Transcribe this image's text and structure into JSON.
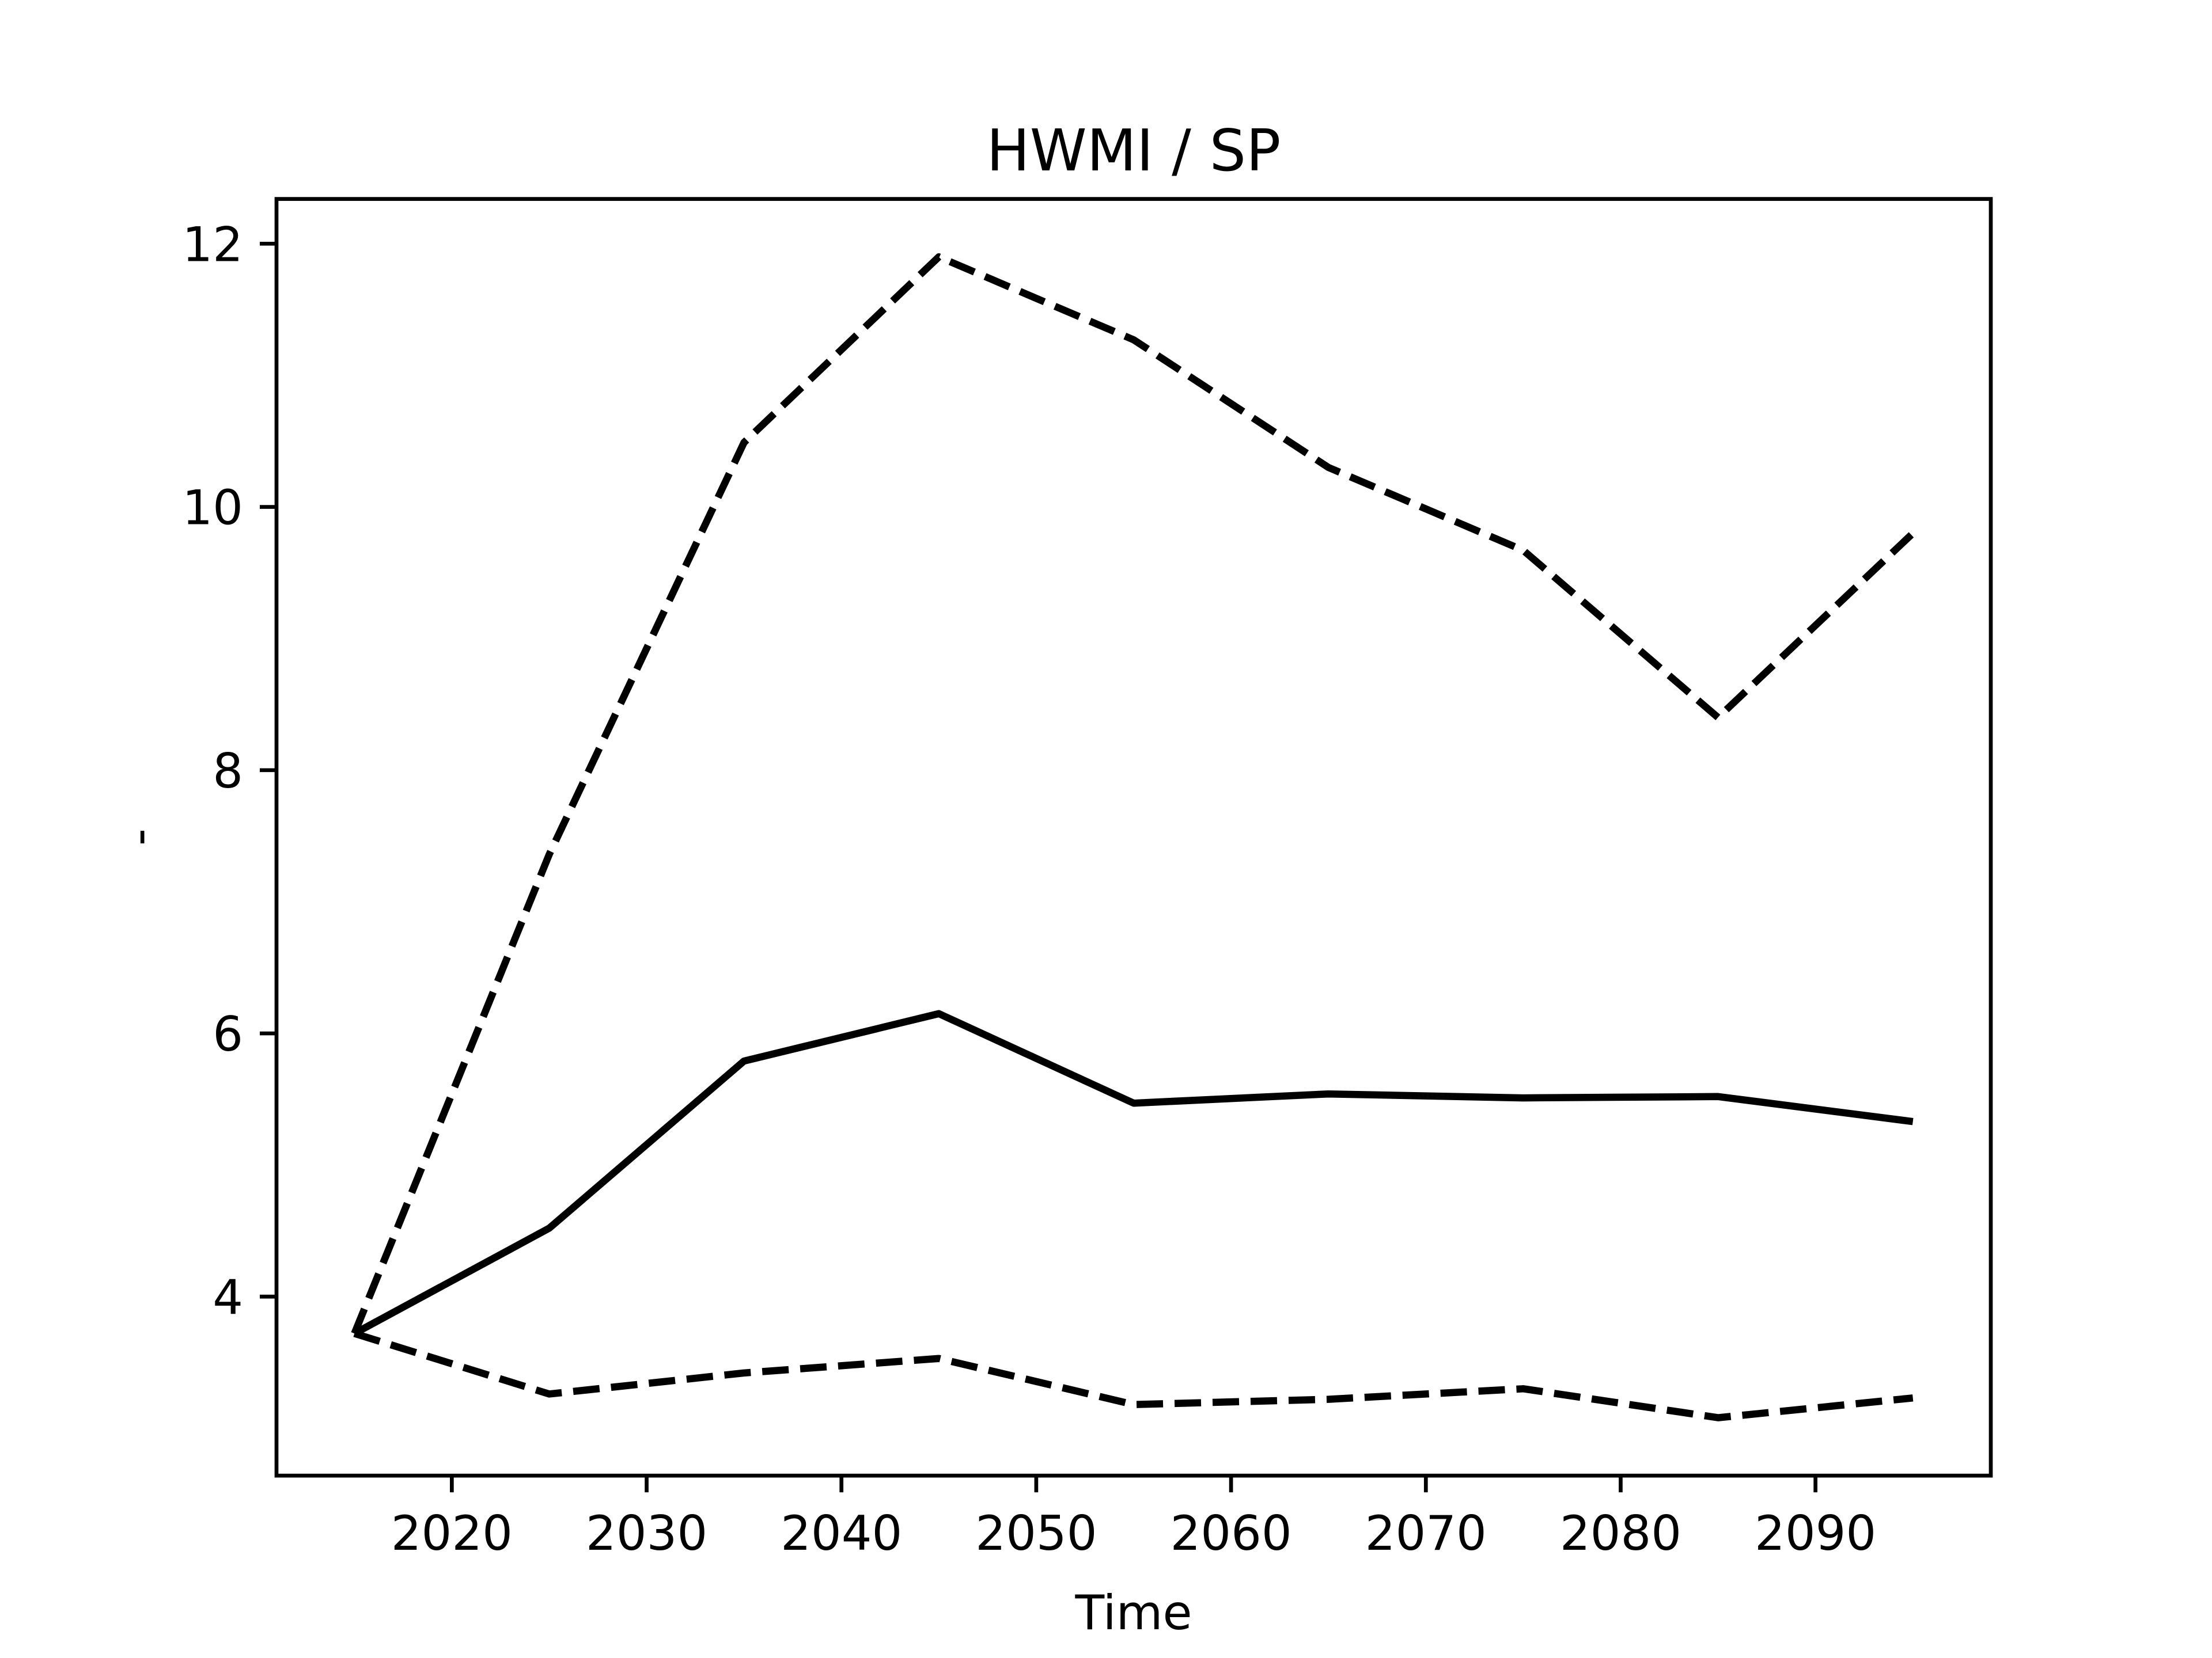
{
  "chart_data": {
    "type": "line",
    "title": "HWMI / SP",
    "xlabel": "Time",
    "ylabel": "-",
    "x": [
      2015,
      2025,
      2035,
      2045,
      2055,
      2065,
      2075,
      2085,
      2095
    ],
    "series": [
      {
        "color": "#000000",
        "linestyle": "dashed",
        "values": [
          3.72,
          7.36,
          10.49,
          11.9,
          11.27,
          10.3,
          9.67,
          8.4,
          9.8
        ]
      },
      {
        "color": "#000000",
        "linestyle": "solid",
        "values": [
          3.72,
          4.52,
          5.79,
          6.15,
          5.47,
          5.54,
          5.51,
          5.52,
          5.33
        ]
      },
      {
        "color": "#000000",
        "linestyle": "dashed",
        "values": [
          3.72,
          3.26,
          3.42,
          3.53,
          3.18,
          3.22,
          3.3,
          3.08,
          3.23
        ]
      }
    ],
    "xlim": [
      2011,
      2099
    ],
    "xticks": [
      2020,
      2030,
      2040,
      2050,
      2060,
      2070,
      2080,
      2090
    ],
    "ylim": [
      2.64,
      12.34
    ],
    "yticks": [
      4,
      6,
      8,
      10,
      12
    ],
    "grid": false
  }
}
